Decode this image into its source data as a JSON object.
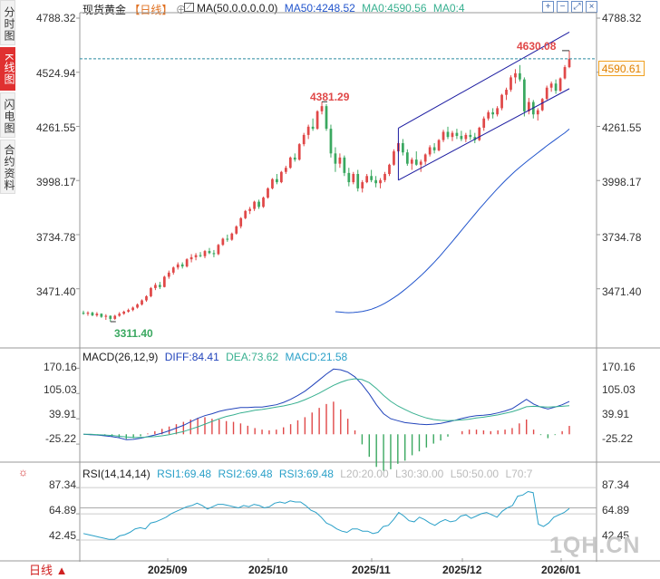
{
  "side_tabs": [
    "分时图",
    "K线图",
    "闪电图",
    "合约资料"
  ],
  "header": {
    "symbol": "现货黄金",
    "period": "【日线】",
    "ma_label": "MA(50,0,0,0,0,0)",
    "ma50": "MA50:4248.52",
    "ma0a": "MA0:4590.56",
    "ma0b": "MA0:4",
    "plus_icon": "⊕",
    "toolbar": [
      "zoom-in-icon",
      "zoom-out-icon",
      "fullscreen-icon",
      "close-icon"
    ]
  },
  "main_chart": {
    "y_ticks": [
      "4788.32",
      "4524.94",
      "4261.55",
      "3998.17",
      "3734.78",
      "3471.40"
    ],
    "current_price": "4590.61",
    "high_label": "4630.08",
    "peak_label": "4381.29",
    "low_label": "3311.40"
  },
  "macd": {
    "title": "MACD(26,12,9)",
    "diff": "DIFF:84.41",
    "dea": "DEA:73.62",
    "macd": "MACD:21.58",
    "y_ticks": [
      "170.16",
      "105.03",
      "39.91",
      "-25.22"
    ]
  },
  "rsi": {
    "title": "RSI(14,14,14)",
    "rsi1": "RSI1:69.48",
    "rsi2": "RSI2:69.48",
    "rsi3": "RSI3:69.48",
    "l20": "L20:20.00",
    "l30": "L30:30.00",
    "l50": "L50:50.00",
    "l70": "L70:7",
    "y_ticks": [
      "87.34",
      "64.89",
      "42.45"
    ]
  },
  "x_labels": [
    "2025/09",
    "2025/10",
    "2025/11",
    "2025/12",
    "2026/01"
  ],
  "period_button": "日线 ▲",
  "watermark": "1QH.CN",
  "colors": {
    "up": "#e04848",
    "down": "#3aa860",
    "ma50": "#2255cc",
    "diff": "#2244bb",
    "dea": "#38b090",
    "accent": "#e03030"
  },
  "chart_data": {
    "type": "candlestick",
    "title": "现货黄金【日线】",
    "ylim": [
      3311.4,
      4788.32
    ],
    "price_scale_ticks": [
      4788.32,
      4524.94,
      4261.55,
      3998.17,
      3734.78,
      3471.4
    ],
    "candles_ohlc": [
      [
        3355,
        3365,
        3345,
        3350
      ],
      [
        3350,
        3362,
        3340,
        3355
      ],
      [
        3355,
        3360,
        3338,
        3342
      ],
      [
        3342,
        3358,
        3335,
        3350
      ],
      [
        3350,
        3352,
        3330,
        3335
      ],
      [
        3335,
        3348,
        3320,
        3340
      ],
      [
        3340,
        3342,
        3311.4,
        3325
      ],
      [
        3325,
        3345,
        3320,
        3340
      ],
      [
        3340,
        3358,
        3335,
        3350
      ],
      [
        3350,
        3365,
        3345,
        3360
      ],
      [
        3360,
        3375,
        3355,
        3368
      ],
      [
        3368,
        3385,
        3362,
        3380
      ],
      [
        3380,
        3400,
        3375,
        3395
      ],
      [
        3395,
        3420,
        3390,
        3415
      ],
      [
        3415,
        3440,
        3408,
        3435
      ],
      [
        3435,
        3480,
        3430,
        3475
      ],
      [
        3475,
        3500,
        3465,
        3490
      ],
      [
        3490,
        3505,
        3470,
        3480
      ],
      [
        3480,
        3535,
        3478,
        3530
      ],
      [
        3530,
        3560,
        3520,
        3550
      ],
      [
        3550,
        3580,
        3540,
        3575
      ],
      [
        3575,
        3600,
        3565,
        3590
      ],
      [
        3590,
        3600,
        3570,
        3580
      ],
      [
        3580,
        3620,
        3575,
        3615
      ],
      [
        3615,
        3640,
        3600,
        3625
      ],
      [
        3625,
        3645,
        3610,
        3635
      ],
      [
        3635,
        3650,
        3625,
        3630
      ],
      [
        3630,
        3660,
        3620,
        3655
      ],
      [
        3655,
        3670,
        3640,
        3645
      ],
      [
        3645,
        3660,
        3625,
        3640
      ],
      [
        3640,
        3690,
        3635,
        3685
      ],
      [
        3685,
        3720,
        3680,
        3715
      ],
      [
        3715,
        3735,
        3700,
        3710
      ],
      [
        3710,
        3745,
        3705,
        3740
      ],
      [
        3740,
        3780,
        3735,
        3775
      ],
      [
        3775,
        3820,
        3765,
        3815
      ],
      [
        3815,
        3855,
        3810,
        3850
      ],
      [
        3850,
        3870,
        3835,
        3860
      ],
      [
        3860,
        3900,
        3850,
        3895
      ],
      [
        3895,
        3905,
        3860,
        3870
      ],
      [
        3870,
        3920,
        3865,
        3915
      ],
      [
        3915,
        3965,
        3910,
        3960
      ],
      [
        3960,
        4010,
        3955,
        4005
      ],
      [
        4005,
        4030,
        3980,
        3990
      ],
      [
        3990,
        4045,
        3985,
        4040
      ],
      [
        4040,
        4070,
        4030,
        4060
      ],
      [
        4060,
        4115,
        4055,
        4110
      ],
      [
        4110,
        4130,
        4090,
        4100
      ],
      [
        4100,
        4180,
        4095,
        4175
      ],
      [
        4175,
        4230,
        4165,
        4220
      ],
      [
        4220,
        4270,
        4200,
        4260
      ],
      [
        4260,
        4300,
        4240,
        4250
      ],
      [
        4250,
        4340,
        4245,
        4335
      ],
      [
        4335,
        4381.29,
        4320,
        4360
      ],
      [
        4360,
        4370,
        4240,
        4250
      ],
      [
        4250,
        4270,
        4110,
        4130
      ],
      [
        4130,
        4160,
        4040,
        4080
      ],
      [
        4080,
        4130,
        4060,
        4110
      ],
      [
        4110,
        4120,
        4020,
        4035
      ],
      [
        4035,
        4060,
        3970,
        3990
      ],
      [
        3990,
        4040,
        3980,
        4030
      ],
      [
        4030,
        4050,
        3945,
        3960
      ],
      [
        3960,
        4000,
        3940,
        3990
      ],
      [
        3990,
        4030,
        3985,
        4020
      ],
      [
        4020,
        4050,
        3990,
        4000
      ],
      [
        4000,
        4020,
        3965,
        3985
      ],
      [
        3985,
        4010,
        3960,
        4000
      ],
      [
        4000,
        4040,
        3990,
        4030
      ],
      [
        4030,
        4080,
        4020,
        4075
      ],
      [
        4075,
        4150,
        4070,
        4140
      ],
      [
        4140,
        4190,
        4130,
        4180
      ],
      [
        4180,
        4200,
        4120,
        4135
      ],
      [
        4135,
        4150,
        4070,
        4080
      ],
      [
        4080,
        4110,
        4050,
        4100
      ],
      [
        4100,
        4140,
        4070,
        4075
      ],
      [
        4075,
        4100,
        4040,
        4090
      ],
      [
        4090,
        4130,
        4075,
        4125
      ],
      [
        4125,
        4170,
        4115,
        4160
      ],
      [
        4160,
        4180,
        4130,
        4145
      ],
      [
        4145,
        4200,
        4140,
        4195
      ],
      [
        4195,
        4245,
        4185,
        4235
      ],
      [
        4235,
        4260,
        4200,
        4210
      ],
      [
        4210,
        4240,
        4190,
        4230
      ],
      [
        4230,
        4250,
        4200,
        4215
      ],
      [
        4215,
        4240,
        4190,
        4200
      ],
      [
        4200,
        4230,
        4185,
        4220
      ],
      [
        4220,
        4245,
        4195,
        4210
      ],
      [
        4210,
        4230,
        4180,
        4195
      ],
      [
        4195,
        4260,
        4190,
        4255
      ],
      [
        4255,
        4310,
        4240,
        4300
      ],
      [
        4300,
        4340,
        4290,
        4330
      ],
      [
        4330,
        4350,
        4300,
        4320
      ],
      [
        4320,
        4360,
        4310,
        4350
      ],
      [
        4350,
        4420,
        4340,
        4415
      ],
      [
        4415,
        4450,
        4390,
        4440
      ],
      [
        4440,
        4510,
        4430,
        4500
      ],
      [
        4500,
        4540,
        4470,
        4520
      ],
      [
        4520,
        4560,
        4480,
        4490
      ],
      [
        4490,
        4500,
        4310,
        4335
      ],
      [
        4335,
        4400,
        4320,
        4380
      ],
      [
        4380,
        4390,
        4300,
        4320
      ],
      [
        4320,
        4350,
        4290,
        4340
      ],
      [
        4340,
        4400,
        4335,
        4395
      ],
      [
        4395,
        4460,
        4390,
        4450
      ],
      [
        4450,
        4480,
        4430,
        4470
      ],
      [
        4470,
        4490,
        4420,
        4435
      ],
      [
        4435,
        4500,
        4430,
        4495
      ],
      [
        4495,
        4560,
        4490,
        4550
      ],
      [
        4550,
        4630.08,
        4545,
        4590.61
      ]
    ],
    "ma50_series": [
      3360,
      3358,
      3356,
      3355,
      3356,
      3358,
      3361,
      3366,
      3372,
      3380,
      3390,
      3401,
      3414,
      3428,
      3443,
      3460,
      3477,
      3496,
      3515,
      3535,
      3556,
      3578,
      3601,
      3625,
      3650,
      3676,
      3702,
      3728,
      3755,
      3782,
      3808,
      3834,
      3860,
      3885,
      3910,
      3934,
      3958,
      3981,
      4003,
      4024,
      4044,
      4063,
      4081,
      4099,
      4116,
      4133,
      4150,
      4167,
      4183,
      4199,
      4215,
      4230,
      4248.52
    ],
    "channel_upper": [
      [
        70,
        4253
      ],
      [
        108,
        4720
      ]
    ],
    "channel_lower": [
      [
        70,
        4000
      ],
      [
        108,
        4445
      ]
    ],
    "macd": {
      "ylim": [
        -60,
        185
      ],
      "y_ticks": [
        170.16,
        105.03,
        39.91,
        -25.22
      ],
      "diff": [
        0,
        -1,
        -2,
        -4,
        -6,
        -9,
        -14,
        -13,
        -10,
        -6,
        -2,
        3,
        9,
        16,
        23,
        32,
        41,
        48,
        53,
        59,
        63,
        66,
        69,
        69,
        70,
        70,
        73,
        76,
        82,
        90,
        100,
        111,
        125,
        140,
        155,
        168,
        166,
        160,
        148,
        128,
        104,
        76,
        53,
        40,
        35,
        30,
        28,
        26,
        25,
        26,
        28,
        32,
        36,
        41,
        45,
        48,
        49,
        51,
        55,
        60,
        66,
        78,
        90,
        78,
        70,
        65,
        70,
        76,
        84.41
      ],
      "dea": [
        0,
        0,
        -1,
        -2,
        -3,
        -5,
        -7,
        -8,
        -8,
        -7,
        -6,
        -4,
        -1,
        3,
        7,
        13,
        19,
        26,
        33,
        40,
        46,
        50,
        55,
        58,
        62,
        64,
        67,
        70,
        73,
        77,
        82,
        89,
        97,
        106,
        116,
        126,
        134,
        140,
        143,
        141,
        133,
        118,
        100,
        85,
        73,
        64,
        55,
        48,
        42,
        38,
        36,
        35,
        36,
        37,
        39,
        42,
        44,
        47,
        50,
        54,
        58,
        64,
        71,
        72,
        71,
        70,
        71,
        72,
        73.62
      ],
      "macd_hist": [
        0,
        -2,
        -3,
        -4,
        -6,
        -8,
        -12,
        -10,
        -5,
        2,
        8,
        14,
        20,
        26,
        32,
        38,
        42,
        44,
        40,
        38,
        34,
        32,
        28,
        22,
        16,
        12,
        10,
        12,
        18,
        26,
        36,
        44,
        56,
        68,
        78,
        84,
        64,
        40,
        10,
        -26,
        -58,
        -84,
        -94,
        -90,
        -76,
        -68,
        -54,
        -44,
        -34,
        -24,
        -16,
        -6,
        0,
        8,
        12,
        12,
        10,
        8,
        10,
        12,
        16,
        28,
        38,
        12,
        -2,
        -10,
        -2,
        8,
        21.58
      ]
    },
    "rsi": {
      "ylim": [
        30,
        96
      ],
      "y_ticks": [
        87.34,
        64.89,
        42.45
      ],
      "rsi1": [
        48,
        47,
        46,
        45,
        44,
        43,
        43,
        46,
        47,
        49,
        52,
        53,
        52,
        57,
        58,
        60,
        62,
        65,
        67,
        69,
        71,
        72,
        74,
        72,
        69,
        71,
        73,
        73,
        72,
        71,
        70,
        72,
        71,
        73,
        72,
        70,
        71,
        74,
        75,
        74,
        76,
        75,
        75,
        72,
        68,
        66,
        62,
        57,
        55,
        52,
        50,
        49,
        52,
        52,
        50,
        50,
        48,
        49,
        54,
        55,
        60,
        66,
        63,
        59,
        58,
        62,
        60,
        57,
        55,
        58,
        60,
        58,
        59,
        63,
        64,
        61,
        63,
        65,
        66,
        64,
        62,
        67,
        70,
        72,
        80,
        81,
        84,
        83,
        56,
        54,
        57,
        62,
        64,
        66,
        69.48
      ]
    }
  }
}
